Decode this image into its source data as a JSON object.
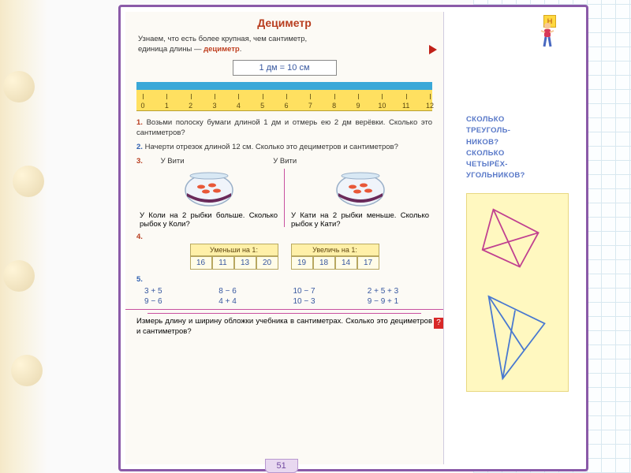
{
  "title": "Дециметр",
  "intro_line1": "Узнаем, что есть более крупная, чем сантиметр,",
  "intro_line2_pre": "единица длины — ",
  "intro_accent": "дециметр",
  "formula": "1 дм = 10 см",
  "ruler": {
    "ticks": [
      0,
      1,
      2,
      3,
      4,
      5,
      6,
      7,
      8,
      9,
      10,
      11,
      12
    ]
  },
  "tasks": {
    "t1": {
      "num": "1.",
      "text": "Возьми полоску бумаги длиной 1 дм и отмерь ею 2 дм верёвки. Сколько это сантиметров?"
    },
    "t2": {
      "num": "2.",
      "text": "Начерти отрезок длиной 12 см. Сколько это дециметров и сантиметров?"
    },
    "t3": {
      "num": "3.",
      "head": "У Вити",
      "left": "У Коли на 2 рыбки больше. Сколько рыбок у Коли?",
      "right": "У Кати на 2 рыбки меньше. Сколько рыбок у Кати?"
    },
    "t4": {
      "num": "4.",
      "minus_head": "Уменьши на 1:",
      "plus_head": "Увеличь на 1:",
      "minus_cells": [
        "16",
        "11",
        "13",
        "20"
      ],
      "plus_cells": [
        "19",
        "18",
        "14",
        "17"
      ]
    },
    "t5": {
      "num": "5.",
      "exprs": [
        "3 + 5",
        "8 − 6",
        "10 − 7",
        "2 + 5 + 3",
        "9 − 6",
        "4 + 4",
        "10 − 3",
        "9 − 9 + 1"
      ]
    },
    "bottom": "Измерь длину и ширину обложки учебника в сантиметрах. Сколько это дециметров и сантиметров?"
  },
  "sidebar": {
    "badge": "Н",
    "q": "СКОЛЬКО\nТРЕУГОЛЬ-\nНИКОВ?\nСКОЛЬКО\nЧЕТЫРЁХ-\nУГОЛЬНИКОВ?"
  },
  "page_number": "51",
  "colors": {
    "frame": "#8a5aa8",
    "title": "#b83d1f",
    "ruler": "#ffe060",
    "bar": "#3aa8d8",
    "side_text": "#5878c8",
    "geom_box": "#fff8c0"
  }
}
